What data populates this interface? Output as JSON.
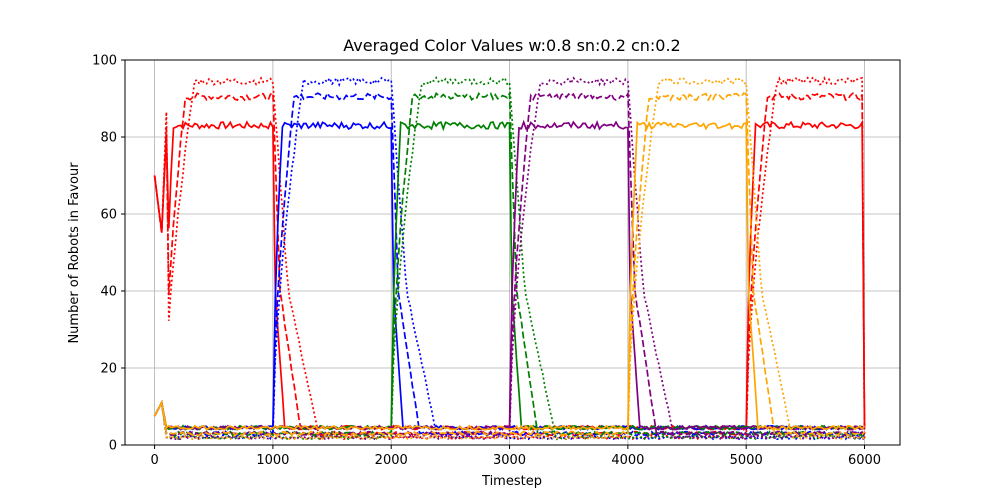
{
  "chart_data": {
    "type": "line",
    "title": "Averaged Color Values  w:0.8 sn:0.2 cn:0.2",
    "xlabel": "Timestep",
    "ylabel": "Number of Robots in Favour",
    "xlim": [
      -250,
      6300
    ],
    "ylim": [
      0,
      100
    ],
    "x_ticks": [
      "0",
      "1000",
      "2000",
      "3000",
      "4000",
      "5000",
      "6000"
    ],
    "y_ticks": [
      "0",
      "20",
      "40",
      "60",
      "80",
      "100"
    ],
    "grid": true,
    "legend": "none",
    "colors": [
      "#ff0000",
      "#0000ff",
      "#008000",
      "#800080",
      "#ffa500"
    ],
    "line_styles": [
      "solid",
      "dashed",
      "dotted"
    ],
    "style_values": {
      "solid": {
        "high": 83,
        "low": 4.5
      },
      "dashed": {
        "high": 90.5,
        "low": 3
      },
      "dotted": {
        "high": 94.5,
        "low": 2
      }
    },
    "active_periods": [
      {
        "color": "#ff0000",
        "start": 0,
        "end": 1000
      },
      {
        "color": "#0000ff",
        "start": 1000,
        "end": 2000
      },
      {
        "color": "#008000",
        "start": 2000,
        "end": 3000
      },
      {
        "color": "#800080",
        "start": 3000,
        "end": 4000
      },
      {
        "color": "#ffa500",
        "start": 4000,
        "end": 5000
      },
      {
        "color": "#ff0000",
        "start": 5000,
        "end": 6000
      }
    ],
    "start_values": {
      "red_solid": [
        [
          0,
          70
        ],
        [
          60,
          55.5
        ],
        [
          100,
          80
        ]
      ],
      "others_start": 7.5,
      "others_peak": [
        60,
        11
      ]
    }
  }
}
